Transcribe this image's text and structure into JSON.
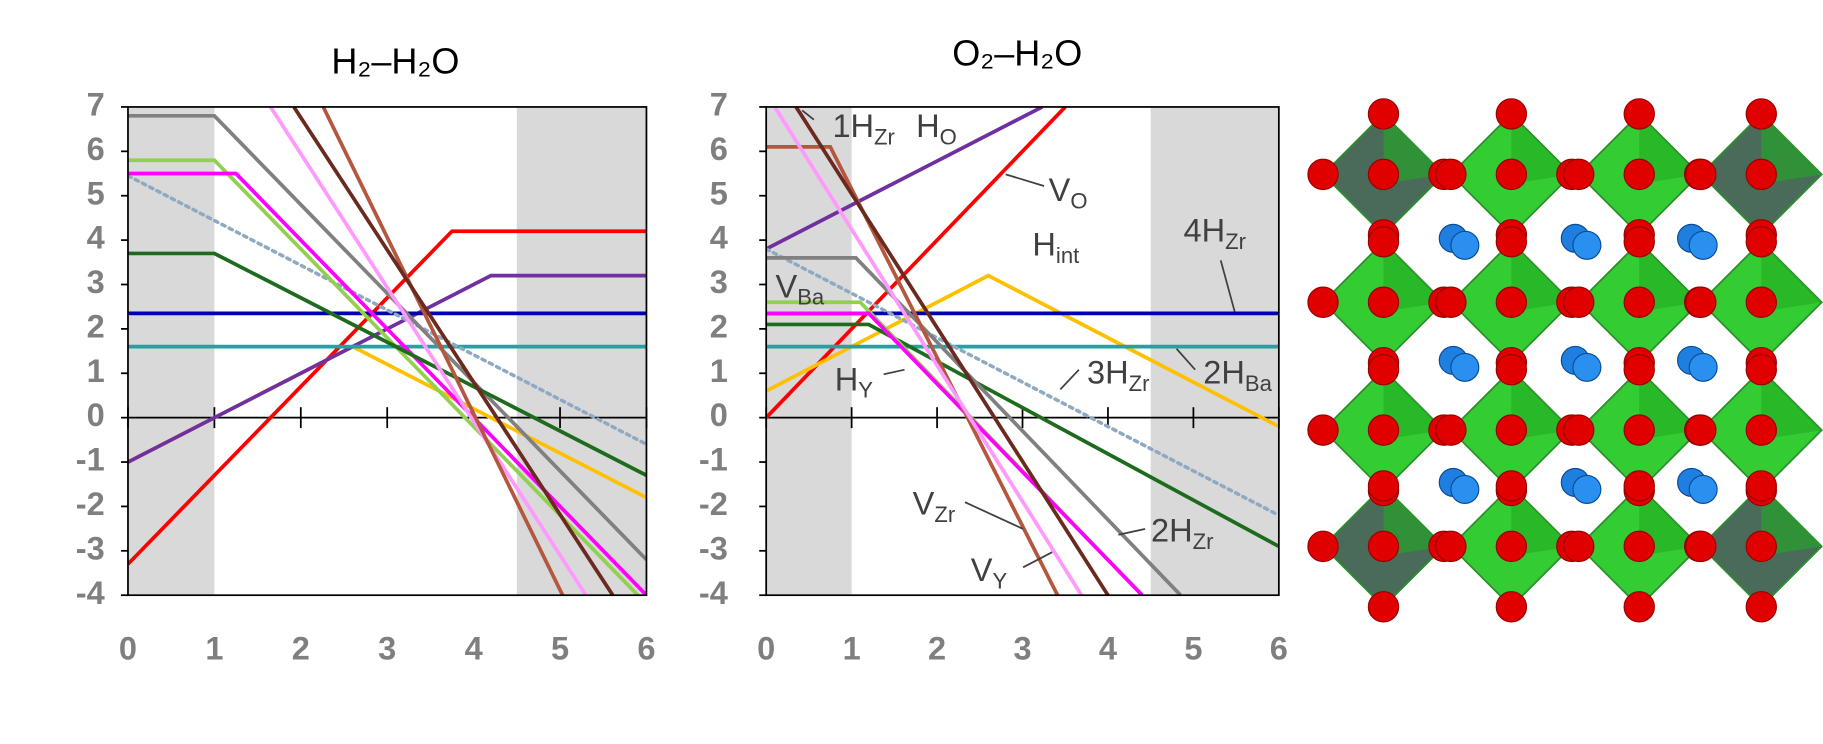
{
  "chart_data": [
    {
      "type": "line",
      "title": "H₂–H₂O",
      "xlim": [
        0,
        6
      ],
      "ylim": [
        -4,
        7
      ],
      "xticks": [
        0,
        1,
        2,
        3,
        4,
        5,
        6
      ],
      "yticks": [
        -4,
        -3,
        -2,
        -1,
        0,
        1,
        2,
        3,
        4,
        5,
        6,
        7
      ],
      "shaded_x": [
        [
          0,
          1
        ],
        [
          4.5,
          6
        ]
      ],
      "series": [
        {
          "color": "#ff0000",
          "x": [
            0,
            3.75,
            6
          ],
          "values": [
            -3.3,
            4.2,
            4.2
          ]
        },
        {
          "color": "#ffc000",
          "x": [
            0,
            2.6,
            6
          ],
          "values": [
            -1,
            1.6,
            -1.8
          ]
        },
        {
          "color": "#7030a0",
          "x": [
            0,
            4.2,
            6
          ],
          "values": [
            -1,
            3.2,
            3.2
          ]
        },
        {
          "color": "#0000b0",
          "x": [
            0,
            6
          ],
          "values": [
            2.35,
            2.35
          ]
        },
        {
          "color": "#26a0a0",
          "x": [
            0,
            6
          ],
          "values": [
            1.6,
            1.6
          ]
        },
        {
          "color": "#8ea9c1",
          "dash": "dotted",
          "x": [
            0,
            6
          ],
          "values": [
            5.45,
            -0.6
          ]
        },
        {
          "color": "#808080",
          "x": [
            0,
            1,
            6
          ],
          "values": [
            6.8,
            6.8,
            -3.2
          ]
        },
        {
          "color": "#92d050",
          "x": [
            0,
            1,
            5.9
          ],
          "values": [
            5.8,
            5.8,
            -4
          ]
        },
        {
          "color": "#ff00ff",
          "x": [
            0,
            1.25,
            6
          ],
          "values": [
            5.5,
            5.5,
            -4
          ]
        },
        {
          "color": "#1e6b1e",
          "x": [
            0,
            1,
            6
          ],
          "values": [
            3.7,
            3.7,
            -1.3
          ]
        },
        {
          "color": "#ff99ff",
          "x": [
            1.65,
            5.3
          ],
          "values": [
            7,
            -4
          ]
        },
        {
          "color": "#b5573f",
          "x": [
            2.26,
            5.03
          ],
          "values": [
            7,
            -4
          ]
        },
        {
          "color": "#6b2a1f",
          "x": [
            1.92,
            5.61
          ],
          "values": [
            7,
            -4
          ]
        }
      ]
    },
    {
      "type": "line",
      "title": "O₂–H₂O",
      "xlim": [
        0,
        6
      ],
      "ylim": [
        -4,
        7
      ],
      "xticks": [
        0,
        1,
        2,
        3,
        4,
        5,
        6
      ],
      "yticks": [
        -4,
        -3,
        -2,
        -1,
        0,
        1,
        2,
        3,
        4,
        5,
        6,
        7
      ],
      "shaded_x": [
        [
          0,
          1
        ],
        [
          4.5,
          6
        ]
      ],
      "series": [
        {
          "color": "#ff0000",
          "x": [
            0,
            3.5
          ],
          "values": [
            0,
            7
          ]
        },
        {
          "color": "#7030a0",
          "x": [
            0,
            3.23
          ],
          "values": [
            3.8,
            7
          ]
        },
        {
          "color": "#ffc000",
          "x": [
            0,
            2.6,
            6
          ],
          "values": [
            0.6,
            3.2,
            -0.2
          ]
        },
        {
          "color": "#0000b0",
          "x": [
            0,
            6
          ],
          "values": [
            2.35,
            2.35
          ]
        },
        {
          "color": "#26a0a0",
          "x": [
            0,
            6
          ],
          "values": [
            1.6,
            1.6
          ]
        },
        {
          "color": "#8ea9c1",
          "dash": "dotted",
          "x": [
            0,
            6
          ],
          "values": [
            3.8,
            -2.2
          ]
        },
        {
          "color": "#1e6b1e",
          "x": [
            0,
            1.2,
            6
          ],
          "values": [
            2.1,
            2.1,
            -2.9
          ]
        },
        {
          "color": "#808080",
          "x": [
            0,
            1.05,
            4.85
          ],
          "values": [
            3.6,
            3.6,
            -4
          ]
        },
        {
          "color": "#92d050",
          "x": [
            0,
            1.1,
            4.4
          ],
          "values": [
            2.6,
            2.6,
            -4
          ]
        },
        {
          "color": "#ff00ff",
          "x": [
            0,
            1.2,
            4.4
          ],
          "values": [
            2.35,
            2.35,
            -4
          ]
        },
        {
          "color": "#b5573f",
          "x": [
            0,
            0.75,
            3.41
          ],
          "values": [
            6.1,
            6.1,
            -4
          ]
        },
        {
          "color": "#6b2a1f",
          "x": [
            0.35,
            4.0
          ],
          "values": [
            7,
            -4
          ]
        },
        {
          "color": "#ff99ff",
          "x": [
            0.1,
            3.69
          ],
          "values": [
            7,
            -4
          ]
        }
      ],
      "annotations": [
        {
          "text": "1H",
          "sub": "Zr"
        },
        {
          "text": "H",
          "sub": "O"
        },
        {
          "text": "V",
          "sub": "O"
        },
        {
          "text": "H",
          "sub": "int"
        },
        {
          "text": "4H",
          "sub": "Zr"
        },
        {
          "text": "V",
          "sub": "Ba"
        },
        {
          "text": "3H",
          "sub": "Zr"
        },
        {
          "text": "2H",
          "sub": "Ba"
        },
        {
          "text": "H",
          "sub": "Y"
        },
        {
          "text": "V",
          "sub": "Zr"
        },
        {
          "text": "2H",
          "sub": "Zr"
        },
        {
          "text": "V",
          "sub": "Y"
        }
      ]
    }
  ]
}
